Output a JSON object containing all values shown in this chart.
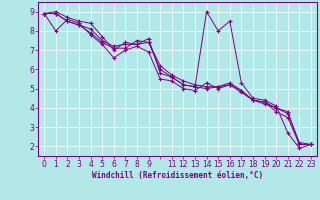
{
  "xlabel": "Windchill (Refroidissement éolien,°C)",
  "bg_color": "#b2e8e8",
  "grid_color": "#ffffff",
  "line_color": "#800080",
  "xlim": [
    -0.5,
    23.5
  ],
  "ylim": [
    1.5,
    9.5
  ],
  "xtick_vals": [
    0,
    1,
    2,
    3,
    4,
    5,
    6,
    7,
    8,
    9,
    11,
    12,
    13,
    14,
    15,
    16,
    17,
    18,
    19,
    20,
    21,
    22,
    23
  ],
  "ytick_vals": [
    2,
    3,
    4,
    5,
    6,
    7,
    8,
    9
  ],
  "series": [
    {
      "x": [
        0,
        1,
        2,
        3,
        4,
        5,
        6,
        7,
        8,
        9,
        10,
        11,
        12,
        13,
        14,
        15,
        16,
        17,
        18,
        19,
        20,
        21,
        22,
        23
      ],
      "y": [
        8.9,
        9.0,
        8.7,
        8.5,
        8.4,
        7.7,
        7.0,
        7.4,
        7.3,
        7.6,
        5.8,
        5.6,
        5.2,
        5.1,
        9.0,
        8.0,
        8.5,
        5.3,
        4.5,
        4.4,
        4.1,
        2.7,
        1.9,
        2.1
      ]
    },
    {
      "x": [
        0,
        1,
        2,
        3,
        4,
        5,
        6,
        7,
        8,
        9,
        10,
        11,
        12,
        13,
        14,
        15,
        16,
        17,
        18,
        19,
        20,
        21,
        22,
        23
      ],
      "y": [
        8.9,
        8.9,
        8.5,
        8.3,
        8.1,
        7.5,
        7.2,
        7.3,
        7.3,
        7.4,
        6.2,
        5.7,
        5.4,
        5.2,
        5.1,
        5.1,
        5.3,
        4.9,
        4.4,
        4.2,
        4.0,
        3.8,
        2.1,
        2.1
      ]
    },
    {
      "x": [
        0,
        1,
        2,
        3,
        4,
        5,
        6,
        7,
        8,
        9,
        10,
        11,
        12,
        13,
        14,
        15,
        16,
        17,
        18,
        19,
        20,
        21,
        22,
        23
      ],
      "y": [
        8.9,
        8.0,
        8.6,
        8.4,
        7.8,
        7.3,
        6.6,
        7.0,
        7.2,
        6.9,
        5.5,
        5.4,
        5.0,
        4.9,
        5.3,
        5.0,
        5.2,
        4.8,
        4.4,
        4.3,
        3.8,
        3.5,
        2.1,
        2.1
      ]
    },
    {
      "x": [
        0,
        1,
        2,
        3,
        4,
        5,
        6,
        7,
        8,
        9,
        10,
        11,
        12,
        13,
        14,
        15,
        16,
        17,
        18,
        19,
        20,
        21,
        22,
        23
      ],
      "y": [
        8.9,
        8.9,
        8.5,
        8.3,
        7.9,
        7.4,
        7.1,
        7.1,
        7.5,
        7.4,
        6.0,
        5.6,
        5.2,
        5.1,
        5.0,
        5.1,
        5.2,
        4.9,
        4.4,
        4.3,
        4.0,
        3.7,
        2.2,
        2.1
      ]
    }
  ]
}
